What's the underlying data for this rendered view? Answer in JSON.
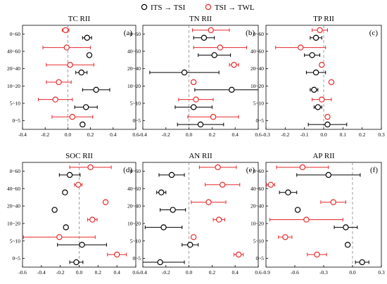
{
  "legend": {
    "entries": [
      {
        "label": "ITS → TSI",
        "color": "#000000"
      },
      {
        "label": "TSI → TWL",
        "color": "#e8282b"
      }
    ]
  },
  "chart_data": [
    {
      "type": "scatter",
      "title": "TC RII",
      "panel_label": "(a)",
      "xlim": [
        -0.4,
        0.6
      ],
      "xticks": [
        "-0.4",
        "-0.2",
        "0.0",
        "0.2",
        "0.4",
        "0.6"
      ],
      "categories": [
        "0~5",
        "5~10",
        "10~20",
        "20~40",
        "40~60",
        "0~60"
      ],
      "series": [
        {
          "name": "ITS → TSI",
          "color": "#000000",
          "values": [
            0.13,
            0.16,
            0.25,
            0.12,
            0.19,
            0.17
          ],
          "error": [
            0.02,
            0.1,
            0.12,
            0.05,
            0.01,
            0.04
          ]
        },
        {
          "name": "TSI → TWL",
          "color": "#e8282b",
          "values": [
            0.04,
            -0.11,
            -0.08,
            0.02,
            -0.01,
            -0.02
          ],
          "error": [
            0.18,
            0.15,
            0.11,
            0.21,
            0.21,
            0.03
          ]
        }
      ]
    },
    {
      "type": "scatter",
      "title": "TN RII",
      "panel_label": "(b)",
      "xlim": [
        -0.4,
        0.6
      ],
      "xticks": [
        "-0.4",
        "-0.2",
        "0.0",
        "0.2",
        "0.4",
        "0.6"
      ],
      "categories": [
        "0~5",
        "5~10",
        "10~20",
        "20~40",
        "40~60",
        "0~60"
      ],
      "series": [
        {
          "name": "ITS → TSI",
          "color": "#000000",
          "values": [
            0.1,
            0.04,
            0.37,
            -0.04,
            0.22,
            0.13
          ],
          "error": [
            0.2,
            0.16,
            0.32,
            0.3,
            0.14,
            0.09
          ]
        },
        {
          "name": "TSI → TWL",
          "color": "#e8282b",
          "values": [
            0.21,
            0.06,
            0.04,
            0.39,
            0.27,
            0.19
          ],
          "error": [
            0.22,
            0.15,
            0.02,
            0.04,
            0.23,
            0.16
          ]
        }
      ]
    },
    {
      "type": "scatter",
      "title": "TP RII",
      "panel_label": "(c)",
      "xlim": [
        -0.3,
        0.3
      ],
      "xticks": [
        "-0.3",
        "-0.2",
        "-0.1",
        "0.0",
        "0.1",
        "0.2",
        "0.3"
      ],
      "categories": [
        "0~5",
        "5~10",
        "10~20",
        "20~40",
        "40~60",
        "0~60"
      ],
      "series": [
        {
          "name": "ITS → TSI",
          "color": "#000000",
          "values": [
            0.02,
            -0.03,
            -0.05,
            -0.04,
            -0.06,
            -0.04
          ],
          "error": [
            0.1,
            0.02,
            0.02,
            0.05,
            0.04,
            0.03
          ]
        },
        {
          "name": "TSI → TWL",
          "color": "#e8282b",
          "values": [
            0.02,
            -0.01,
            0.04,
            -0.01,
            -0.12,
            -0.02
          ],
          "error": [
            0.005,
            0.05,
            0.01,
            0.01,
            0.13,
            0.04
          ]
        }
      ]
    },
    {
      "type": "scatter",
      "title": "SOC RII",
      "panel_label": "(d)",
      "xlim": [
        -0.6,
        0.6
      ],
      "xticks": [
        "-0.6",
        "-0.4",
        "-0.2",
        "0.0",
        "0.2",
        "0.4",
        "0.6"
      ],
      "categories": [
        "0~5",
        "5~10",
        "10~20",
        "20~40",
        "40~60",
        "0~60"
      ],
      "series": [
        {
          "name": "ITS → TSI",
          "color": "#000000",
          "values": [
            -0.03,
            0.03,
            -0.14,
            -0.26,
            -0.15,
            -0.1
          ],
          "error": [
            0.07,
            0.26,
            0.005,
            0.005,
            0.005,
            0.11
          ]
        },
        {
          "name": "TSI → TWL",
          "color": "#e8282b",
          "values": [
            0.4,
            -0.21,
            0.14,
            0.28,
            -0.01,
            0.12
          ],
          "error": [
            0.1,
            0.38,
            0.05,
            0.02,
            0.04,
            0.22
          ]
        }
      ]
    },
    {
      "type": "scatter",
      "title": "AN RII",
      "panel_label": "(e)",
      "xlim": [
        -0.4,
        0.6
      ],
      "xticks": [
        "-0.4",
        "-0.2",
        "0.0",
        "0.2",
        "0.4",
        "0.6"
      ],
      "categories": [
        "0~5",
        "5~10",
        "10~20",
        "20~40",
        "40~60",
        "0~60"
      ],
      "series": [
        {
          "name": "ITS → TSI",
          "color": "#000000",
          "values": [
            -0.25,
            0.01,
            -0.22,
            -0.14,
            -0.24,
            -0.15
          ],
          "error": [
            0.21,
            0.07,
            0.16,
            0.11,
            0.04,
            0.11
          ]
        },
        {
          "name": "TSI → TWL",
          "color": "#e8282b",
          "values": [
            0.43,
            0.04,
            0.26,
            0.17,
            0.29,
            0.25
          ],
          "error": [
            0.04,
            0.01,
            0.05,
            0.15,
            0.15,
            0.16
          ]
        }
      ]
    },
    {
      "type": "scatter",
      "title": "AP RII",
      "panel_label": "(f)",
      "xlim": [
        -0.9,
        0.3
      ],
      "xticks": [
        "-0.9",
        "-0.6",
        "-0.3",
        "0.0",
        "0.3"
      ],
      "categories": [
        "0~5",
        "5~10",
        "10~20",
        "20~40",
        "40~60",
        "0~60"
      ],
      "series": [
        {
          "name": "ITS → TSI",
          "color": "#000000",
          "values": [
            0.1,
            -0.05,
            -0.07,
            -0.57,
            -0.67,
            -0.25
          ],
          "error": [
            0.07,
            0.005,
            0.12,
            0.005,
            0.09,
            0.33
          ]
        },
        {
          "name": "TSI → TWL",
          "color": "#e8282b",
          "values": [
            -0.37,
            -0.7,
            -0.48,
            -0.2,
            -0.85,
            -0.52
          ],
          "error": [
            0.1,
            0.07,
            0.38,
            0.13,
            0.04,
            0.27
          ]
        }
      ]
    }
  ]
}
